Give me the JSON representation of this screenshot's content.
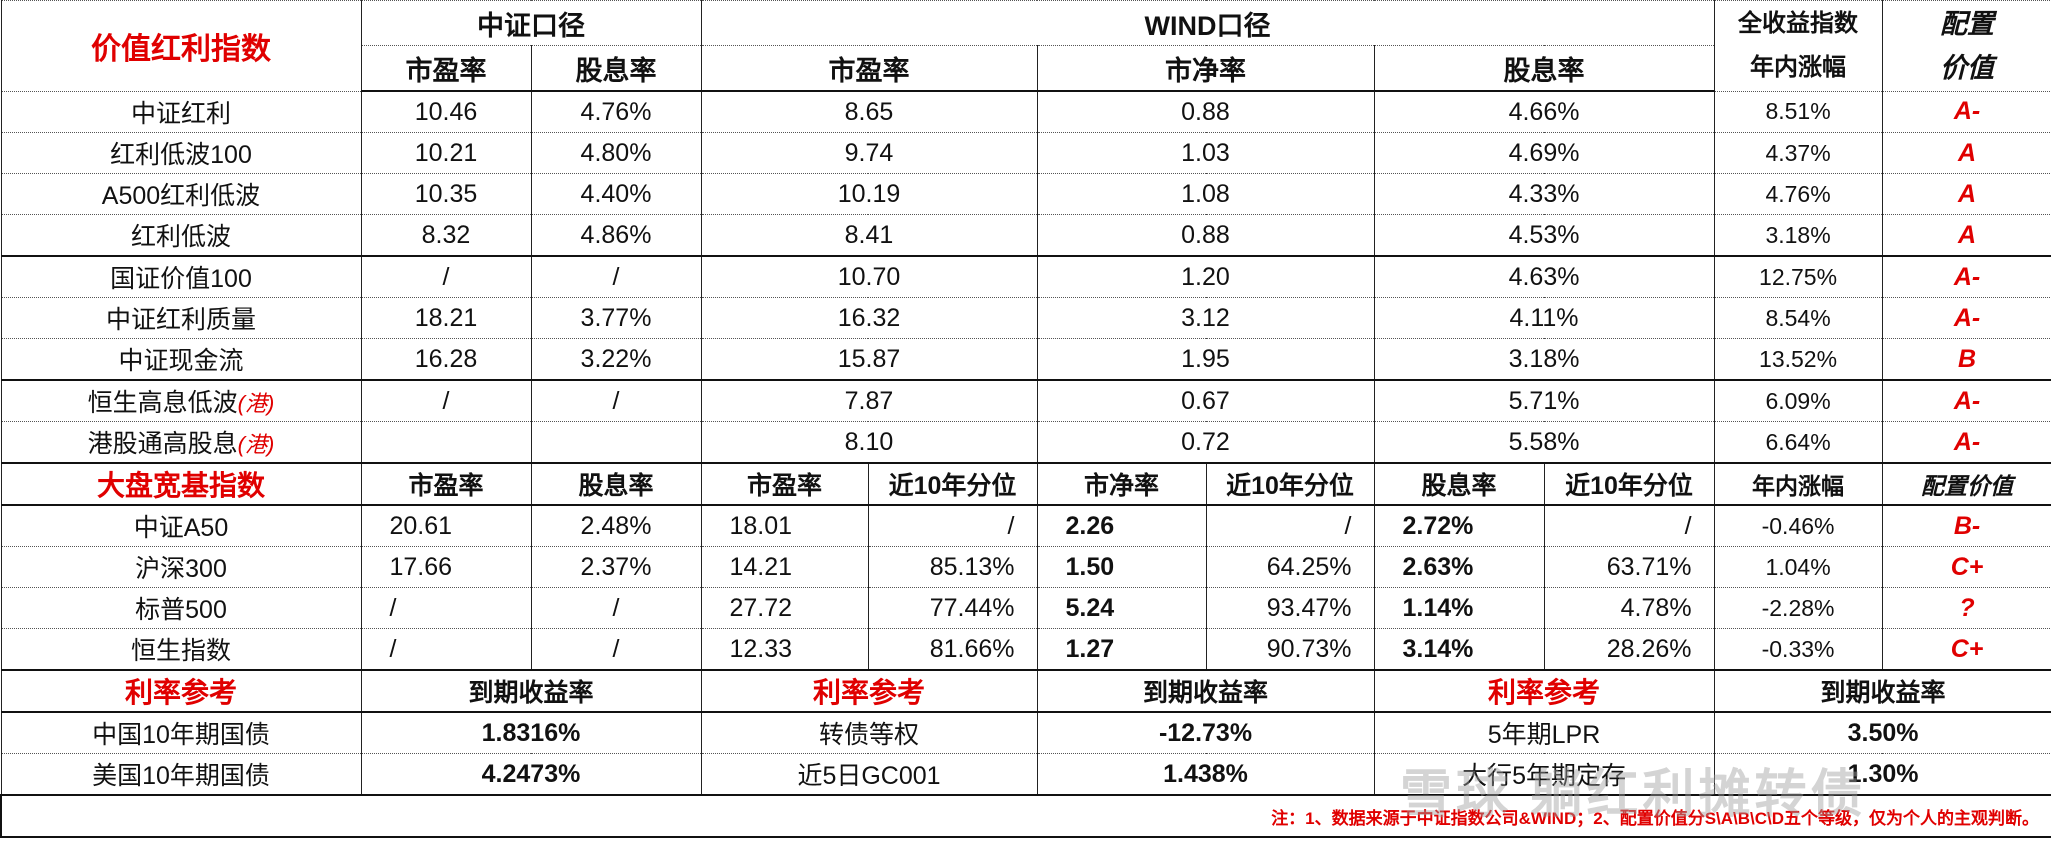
{
  "colors": {
    "accent_red": "#e00000",
    "text": "#111111"
  },
  "value_section": {
    "title": "价值红利指数",
    "csi_header": "中证口径",
    "wind_header": "WIND口径",
    "ytd_header_line1": "全收益指数",
    "ytd_header_line2": "年内涨幅",
    "rating_header_line1": "配置",
    "rating_header_line2": "价值",
    "sub_headers": [
      "市盈率",
      "股息率",
      "市盈率",
      "市净率",
      "股息率"
    ],
    "rows": [
      {
        "name": "中证红利",
        "tag": "",
        "csi_pe": "10.46",
        "csi_dy": "4.76%",
        "wind_pe": "8.65",
        "wind_pb": "0.88",
        "wind_dy": "4.66%",
        "ytd": "8.51%",
        "rating": "A-"
      },
      {
        "name": "红利低波100",
        "tag": "",
        "csi_pe": "10.21",
        "csi_dy": "4.80%",
        "wind_pe": "9.74",
        "wind_pb": "1.03",
        "wind_dy": "4.69%",
        "ytd": "4.37%",
        "rating": "A"
      },
      {
        "name": "A500红利低波",
        "tag": "",
        "csi_pe": "10.35",
        "csi_dy": "4.40%",
        "wind_pe": "10.19",
        "wind_pb": "1.08",
        "wind_dy": "4.33%",
        "ytd": "4.76%",
        "rating": "A"
      },
      {
        "name": "红利低波",
        "tag": "",
        "csi_pe": "8.32",
        "csi_dy": "4.86%",
        "wind_pe": "8.41",
        "wind_pb": "0.88",
        "wind_dy": "4.53%",
        "ytd": "3.18%",
        "rating": "A"
      },
      {
        "name": "国证价值100",
        "tag": "",
        "csi_pe": "/",
        "csi_dy": "/",
        "wind_pe": "10.70",
        "wind_pb": "1.20",
        "wind_dy": "4.63%",
        "ytd": "12.75%",
        "rating": "A-"
      },
      {
        "name": "中证红利质量",
        "tag": "",
        "csi_pe": "18.21",
        "csi_dy": "3.77%",
        "wind_pe": "16.32",
        "wind_pb": "3.12",
        "wind_dy": "4.11%",
        "ytd": "8.54%",
        "rating": "A-"
      },
      {
        "name": "中证现金流",
        "tag": "",
        "csi_pe": "16.28",
        "csi_dy": "3.22%",
        "wind_pe": "15.87",
        "wind_pb": "1.95",
        "wind_dy": "3.18%",
        "ytd": "13.52%",
        "rating": "B"
      },
      {
        "name": "恒生高息低波",
        "tag": "(港)",
        "csi_pe": "/",
        "csi_dy": "/",
        "wind_pe": "7.87",
        "wind_pb": "0.67",
        "wind_dy": "5.71%",
        "ytd": "6.09%",
        "rating": "A-"
      },
      {
        "name": "港股通高股息",
        "tag": "(港)",
        "csi_pe": "",
        "csi_dy": "",
        "wind_pe": "8.10",
        "wind_pb": "0.72",
        "wind_dy": "5.58%",
        "ytd": "6.64%",
        "rating": "A-"
      }
    ]
  },
  "broad_section": {
    "title": "大盘宽基指数",
    "headers": [
      "市盈率",
      "股息率",
      "市盈率",
      "近10年分位",
      "市净率",
      "近10年分位",
      "股息率",
      "近10年分位",
      "年内涨幅",
      "配置价值"
    ],
    "rows": [
      {
        "name": "中证A50",
        "cells": [
          "20.61",
          "2.48%",
          "18.01",
          "/",
          "2.26",
          "/",
          "2.72%",
          "/",
          "-0.46%"
        ],
        "rating": "B-"
      },
      {
        "name": "沪深300",
        "cells": [
          "17.66",
          "2.37%",
          "14.21",
          "85.13%",
          "1.50",
          "64.25%",
          "2.63%",
          "63.71%",
          "1.04%"
        ],
        "rating": "C+"
      },
      {
        "name": "标普500",
        "cells": [
          "/",
          "/",
          "27.72",
          "77.44%",
          "5.24",
          "93.47%",
          "1.14%",
          "4.78%",
          "-2.28%"
        ],
        "rating": "?"
      },
      {
        "name": "恒生指数",
        "cells": [
          "/",
          "/",
          "12.33",
          "81.66%",
          "1.27",
          "90.73%",
          "3.14%",
          "28.26%",
          "-0.33%"
        ],
        "rating": "C+"
      }
    ]
  },
  "rate_section": {
    "ref_label": "利率参考",
    "yield_label": "到期收益率",
    "rows": [
      [
        {
          "name": "中国10年期国债",
          "value": "1.8316%"
        },
        {
          "name": "转债等权",
          "value": "-12.73%"
        },
        {
          "name": "5年期LPR",
          "value": "3.50%"
        }
      ],
      [
        {
          "name": "美国10年期国债",
          "value": "4.2473%"
        },
        {
          "name": "近5日GC001",
          "value": "1.438%"
        },
        {
          "name": "大行5年期定存",
          "value": "1.30%"
        }
      ]
    ]
  },
  "note": "注：1、数据来源于中证指数公司&WIND；2、配置价值分S\\A\\B\\C\\D五个等级，仅为个人的主观判断。",
  "watermark": "雪球 躺红利摊转债"
}
